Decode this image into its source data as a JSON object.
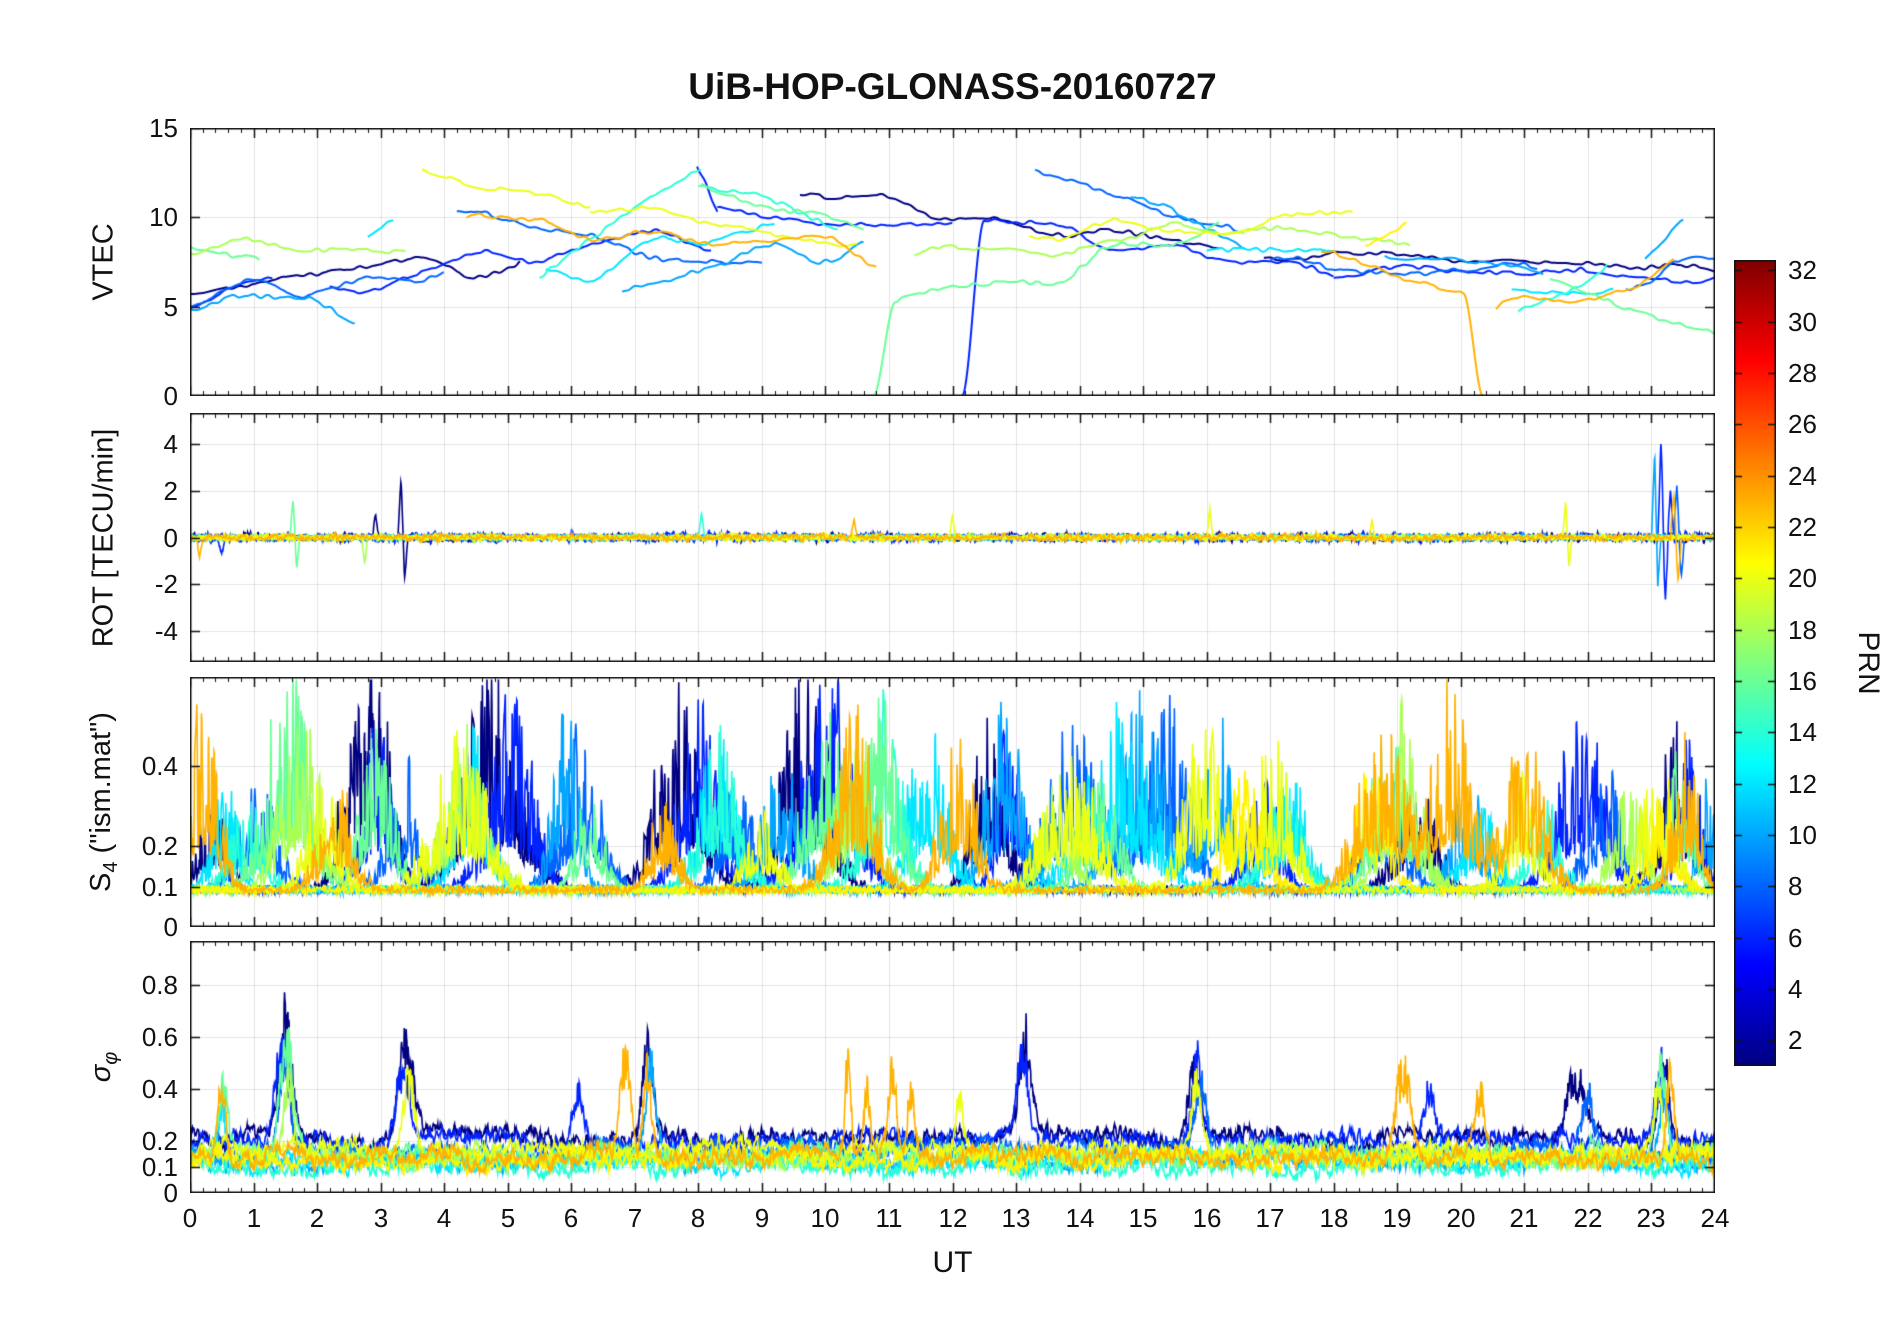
{
  "chart_data": {
    "type": "line",
    "title": "UiB-HOP-GLONASS-20160727",
    "xlabel": "UT",
    "x_range": [
      0,
      24
    ],
    "x_ticks": [
      0,
      1,
      2,
      3,
      4,
      5,
      6,
      7,
      8,
      9,
      10,
      11,
      12,
      13,
      14,
      15,
      16,
      17,
      18,
      19,
      20,
      21,
      22,
      23,
      24
    ],
    "colorbar": {
      "label": "PRN",
      "range": [
        1,
        32.4
      ],
      "ticks": [
        2,
        4,
        6,
        8,
        10,
        12,
        14,
        16,
        18,
        20,
        22,
        24,
        26,
        28,
        30,
        32
      ],
      "colormap": "jet"
    },
    "panels": [
      {
        "id": "vtec",
        "ylabel": "VTEC",
        "ymin": 0,
        "ymax": 15,
        "yticks": [
          0,
          5,
          10,
          15
        ],
        "italic": false
      },
      {
        "id": "rot",
        "ylabel": "ROT [TECU/min]",
        "ymin": -5.3,
        "ymax": 5.3,
        "yticks": [
          -4,
          -2,
          0,
          2,
          4
        ],
        "italic": false
      },
      {
        "id": "s4",
        "ylabel": "S_4 (\"ism.mat\")",
        "ymin": 0,
        "ymax": 0.62,
        "yticks": [
          0,
          0.1,
          0.2,
          0.4
        ],
        "italic": false
      },
      {
        "id": "sigphi",
        "ylabel": "σ_φ",
        "ymin": 0,
        "ymax": 0.97,
        "yticks": [
          0,
          0.1,
          0.2,
          0.4,
          0.6,
          0.8
        ],
        "italic": true
      }
    ],
    "series": [
      {
        "prn": 1,
        "rot_amp": 0.22,
        "sig_base": 0.2,
        "vtec": [
          [
            0,
            5.2,
            5.9,
            7.6,
            0.8,
            0
          ],
          [
            9.6,
            16.2,
            11.7,
            7.9,
            0.7,
            0
          ],
          [
            16.9,
            24,
            7.9,
            6.8,
            0.5,
            0
          ]
        ],
        "rot_spikes": [
          [
            3.32,
            2.6
          ],
          [
            3.38,
            -1.6
          ],
          [
            2.92,
            1.1
          ]
        ],
        "s4": [
          [
            0.35,
            0.2,
            0.28
          ],
          [
            2.65,
            0.25,
            0.5
          ],
          [
            3.05,
            0.2,
            0.42
          ],
          [
            4.75,
            0.45,
            0.6
          ],
          [
            7.7,
            0.35,
            0.58
          ],
          [
            9.7,
            0.35,
            0.6
          ],
          [
            12.6,
            0.25,
            0.52
          ],
          [
            19.3,
            0.3,
            0.3
          ],
          [
            23.4,
            0.3,
            0.42
          ]
        ],
        "sig": [
          [
            1.5,
            0.1,
            0.55
          ],
          [
            3.4,
            0.12,
            0.45
          ],
          [
            7.2,
            0.08,
            0.5
          ],
          [
            13.15,
            0.1,
            0.44
          ],
          [
            15.8,
            0.09,
            0.4
          ],
          [
            21.8,
            0.15,
            0.3
          ],
          [
            23.2,
            0.08,
            0.36
          ]
        ]
      },
      {
        "prn": 6,
        "rot_amp": 0.25,
        "sig_base": 0.19,
        "vtec": [
          [
            0,
            1.3,
            5.2,
            6.4,
            0.6,
            0
          ],
          [
            2.2,
            8.2,
            6.6,
            9.0,
            1.1,
            0
          ],
          [
            7.98,
            8.3,
            12.9,
            10.4,
            0.3,
            0
          ],
          [
            8.3,
            12.0,
            10.4,
            9.7,
            0.5,
            0
          ],
          [
            12.15,
            18.0,
            9.7,
            6.9,
            0.7,
            1
          ],
          [
            18.0,
            24,
            6.9,
            6.7,
            0.5,
            0
          ]
        ],
        "rot_spikes": [
          [
            23.15,
            4.3
          ],
          [
            23.22,
            -2.6
          ],
          [
            23.3,
            2.0
          ],
          [
            0.5,
            -0.8
          ]
        ],
        "s4": [
          [
            2.95,
            0.25,
            0.45
          ],
          [
            5.05,
            0.35,
            0.52
          ],
          [
            8.0,
            0.3,
            0.5
          ],
          [
            10.05,
            0.4,
            0.6
          ],
          [
            12.9,
            0.2,
            0.5
          ],
          [
            16.9,
            0.25,
            0.3
          ],
          [
            21.9,
            0.35,
            0.5
          ],
          [
            23.6,
            0.2,
            0.4
          ]
        ],
        "sig": [
          [
            1.45,
            0.1,
            0.5
          ],
          [
            3.35,
            0.1,
            0.4
          ],
          [
            6.1,
            0.08,
            0.3
          ],
          [
            13.1,
            0.08,
            0.4
          ],
          [
            15.85,
            0.08,
            0.42
          ],
          [
            19.5,
            0.1,
            0.28
          ],
          [
            23.15,
            0.08,
            0.4
          ]
        ]
      },
      {
        "prn": 8,
        "rot_amp": 0.18,
        "sig_base": 0.15,
        "vtec": [
          [
            0,
            4.0,
            5.1,
            7.3,
            1.0,
            0
          ],
          [
            4.2,
            9.0,
            10.3,
            7.0,
            0.9,
            0
          ],
          [
            13.3,
            16.5,
            12.1,
            8.8,
            0.6,
            0
          ],
          [
            17.0,
            21.2,
            7.6,
            7.0,
            0.5,
            0
          ],
          [
            22.6,
            24,
            7.0,
            7.6,
            1.1,
            0
          ]
        ],
        "rot_spikes": [
          [
            23.4,
            2.2
          ],
          [
            23.47,
            -1.8
          ]
        ],
        "s4": [
          [
            1.05,
            0.3,
            0.3
          ],
          [
            3.35,
            0.25,
            0.35
          ],
          [
            6.15,
            0.3,
            0.45
          ],
          [
            8.6,
            0.25,
            0.3
          ],
          [
            13.9,
            0.4,
            0.45
          ],
          [
            15.35,
            0.35,
            0.5
          ],
          [
            18.8,
            0.3,
            0.35
          ],
          [
            22.3,
            0.3,
            0.32
          ]
        ],
        "sig": [
          [
            1.5,
            0.08,
            0.45
          ],
          [
            15.9,
            0.1,
            0.35
          ],
          [
            22.0,
            0.1,
            0.3
          ]
        ]
      },
      {
        "prn": 10,
        "rot_amp": 0.16,
        "sig_base": 0.12,
        "vtec": [
          [
            0,
            2.6,
            5.6,
            4.9,
            0.9,
            0
          ],
          [
            6.8,
            10.6,
            6.6,
            8.4,
            0.8,
            0
          ],
          [
            14.8,
            16.6,
            11.5,
            8.3,
            0.6,
            0
          ],
          [
            18.8,
            21.3,
            7.8,
            6.6,
            0.5,
            0
          ],
          [
            22.9,
            23.5,
            8.2,
            9.8,
            1.4,
            0
          ]
        ],
        "rot_spikes": [
          [
            23.05,
            3.6
          ],
          [
            23.1,
            -2.1
          ]
        ],
        "s4": [
          [
            5.9,
            0.2,
            0.5
          ],
          [
            9.3,
            0.3,
            0.35
          ],
          [
            12.85,
            0.3,
            0.5
          ],
          [
            14.95,
            0.4,
            0.5
          ],
          [
            16.2,
            0.25,
            0.45
          ],
          [
            20.1,
            0.25,
            0.3
          ],
          [
            23.85,
            0.15,
            0.3
          ]
        ],
        "sig": [
          [
            7.25,
            0.08,
            0.45
          ],
          [
            23.2,
            0.07,
            0.35
          ]
        ]
      },
      {
        "prn": 12,
        "rot_amp": 0.14,
        "sig_base": 0.11,
        "vtec": [
          [
            2.8,
            3.2,
            8.4,
            9.6,
            0.9,
            0
          ],
          [
            5.6,
            9.2,
            6.7,
            9.8,
            0.9,
            0
          ],
          [
            16.0,
            18.0,
            8.3,
            8.0,
            0.4,
            0
          ],
          [
            20.8,
            22.4,
            6.6,
            5.7,
            0.6,
            0
          ]
        ],
        "rot_spikes": [],
        "s4": [
          [
            0.55,
            0.2,
            0.3
          ],
          [
            4.45,
            0.25,
            0.45
          ],
          [
            8.3,
            0.3,
            0.4
          ],
          [
            11.6,
            0.3,
            0.45
          ],
          [
            14.6,
            0.5,
            0.5
          ],
          [
            17.3,
            0.3,
            0.3
          ],
          [
            20.3,
            0.25,
            0.28
          ]
        ],
        "sig": [
          [
            0.5,
            0.06,
            0.3
          ]
        ]
      },
      {
        "prn": 14,
        "rot_amp": 0.14,
        "sig_base": 0.1,
        "vtec": [
          [
            5.5,
            8.05,
            6.8,
            12.8,
            0.7,
            0
          ],
          [
            8.05,
            10.2,
            12.4,
            9.3,
            0.5,
            0
          ],
          [
            20.9,
            22.3,
            4.9,
            6.9,
            0.9,
            0
          ]
        ],
        "rot_spikes": [
          [
            8.05,
            1.1
          ]
        ],
        "s4": [
          [
            0.9,
            0.25,
            0.25
          ],
          [
            8.35,
            0.3,
            0.42
          ],
          [
            10.9,
            0.3,
            0.5
          ],
          [
            17.2,
            0.3,
            0.3
          ],
          [
            21.3,
            0.25,
            0.25
          ]
        ],
        "sig": []
      },
      {
        "prn": 16,
        "rot_amp": 0.15,
        "sig_base": 0.14,
        "vtec": [
          [
            0,
            1.1,
            8.3,
            7.9,
            0.4,
            0
          ],
          [
            8.0,
            10.6,
            11.9,
            9.3,
            0.5,
            0
          ],
          [
            10.75,
            16.2,
            5.4,
            8.8,
            0.9,
            1
          ],
          [
            21.4,
            24,
            6.9,
            4.1,
            0.9,
            0
          ]
        ],
        "rot_spikes": [
          [
            1.62,
            1.5
          ],
          [
            1.68,
            -1.2
          ]
        ],
        "s4": [
          [
            1.55,
            0.35,
            0.6
          ],
          [
            2.95,
            0.25,
            0.45
          ],
          [
            6.3,
            0.2,
            0.3
          ],
          [
            9.95,
            0.3,
            0.5
          ],
          [
            10.85,
            0.3,
            0.52
          ],
          [
            14.3,
            0.3,
            0.3
          ],
          [
            18.95,
            0.35,
            0.45
          ],
          [
            23.45,
            0.2,
            0.38
          ]
        ],
        "sig": [
          [
            0.52,
            0.07,
            0.33
          ],
          [
            1.52,
            0.1,
            0.52
          ],
          [
            23.15,
            0.07,
            0.4
          ]
        ]
      },
      {
        "prn": 18,
        "rot_amp": 0.15,
        "sig_base": 0.13,
        "vtec": [
          [
            0,
            3.4,
            8.3,
            7.9,
            0.6,
            0
          ],
          [
            11.4,
            16.6,
            7.7,
            9.4,
            0.8,
            0
          ],
          [
            16.6,
            19.2,
            9.4,
            8.2,
            0.5,
            0
          ]
        ],
        "rot_spikes": [
          [
            2.75,
            -1.0
          ]
        ],
        "s4": [
          [
            1.75,
            0.3,
            0.5
          ],
          [
            4.35,
            0.35,
            0.42
          ],
          [
            10.5,
            0.3,
            0.48
          ],
          [
            13.65,
            0.25,
            0.3
          ],
          [
            19.05,
            0.3,
            0.48
          ],
          [
            22.65,
            0.25,
            0.3
          ]
        ],
        "sig": [
          [
            1.55,
            0.08,
            0.4
          ]
        ]
      },
      {
        "prn": 20,
        "rot_amp": 0.18,
        "sig_base": 0.15,
        "vtec": [
          [
            3.65,
            6.3,
            12.85,
            10.9,
            0.5,
            0
          ],
          [
            6.3,
            10.5,
            10.8,
            8.5,
            0.5,
            0
          ],
          [
            13.2,
            18.3,
            9.4,
            9.6,
            0.8,
            0
          ]
        ],
        "rot_spikes": [
          [
            12.0,
            0.9
          ],
          [
            16.05,
            1.3
          ],
          [
            21.65,
            1.6
          ],
          [
            21.7,
            -1.2
          ]
        ],
        "s4": [
          [
            2.1,
            0.25,
            0.3
          ],
          [
            4.25,
            0.4,
            0.42
          ],
          [
            9.0,
            0.25,
            0.2
          ],
          [
            13.85,
            0.4,
            0.38
          ],
          [
            15.95,
            0.3,
            0.45
          ],
          [
            17.05,
            0.3,
            0.42
          ],
          [
            20.95,
            0.25,
            0.3
          ],
          [
            23.1,
            0.25,
            0.35
          ]
        ],
        "sig": [
          [
            3.45,
            0.1,
            0.37
          ],
          [
            12.1,
            0.07,
            0.3
          ],
          [
            15.85,
            0.08,
            0.4
          ],
          [
            23.1,
            0.06,
            0.3
          ]
        ]
      },
      {
        "prn": 21,
        "rot_amp": 0.16,
        "sig_base": 0.12,
        "vtec": [
          [
            18.5,
            19.15,
            9.0,
            10.3,
            0.8,
            0
          ]
        ],
        "rot_spikes": [
          [
            18.6,
            0.8
          ]
        ],
        "s4": [
          [
            16.6,
            0.3,
            0.3
          ],
          [
            18.6,
            0.25,
            0.35
          ],
          [
            23.2,
            0.2,
            0.3
          ]
        ],
        "sig": []
      },
      {
        "prn": 23,
        "rot_amp": 0.2,
        "sig_base": 0.13,
        "vtec": [
          [
            4.35,
            10.8,
            9.6,
            7.9,
            0.8,
            0
          ],
          [
            17.8,
            20.35,
            8.3,
            5.3,
            0.6,
            2
          ],
          [
            20.55,
            23.35,
            4.9,
            7.3,
            0.8,
            0
          ]
        ],
        "rot_spikes": [
          [
            0.15,
            -0.9
          ],
          [
            10.45,
            0.9
          ],
          [
            23.35,
            1.9
          ],
          [
            23.42,
            -1.9
          ]
        ],
        "s4": [
          [
            0.2,
            0.25,
            0.5
          ],
          [
            2.3,
            0.25,
            0.3
          ],
          [
            7.45,
            0.2,
            0.25
          ],
          [
            10.45,
            0.3,
            0.5
          ],
          [
            12.1,
            0.25,
            0.45
          ],
          [
            18.75,
            0.35,
            0.5
          ],
          [
            19.85,
            0.3,
            0.55
          ],
          [
            21.0,
            0.3,
            0.45
          ],
          [
            23.55,
            0.2,
            0.4
          ]
        ],
        "sig": [
          [
            0.5,
            0.06,
            0.42
          ],
          [
            6.85,
            0.07,
            0.5
          ],
          [
            7.2,
            0.06,
            0.42
          ],
          [
            10.35,
            0.05,
            0.42
          ],
          [
            10.65,
            0.05,
            0.36
          ],
          [
            11.05,
            0.06,
            0.4
          ],
          [
            11.35,
            0.05,
            0.33
          ],
          [
            19.1,
            0.12,
            0.44
          ],
          [
            20.3,
            0.08,
            0.3
          ],
          [
            23.3,
            0.06,
            0.4
          ]
        ]
      }
    ]
  }
}
